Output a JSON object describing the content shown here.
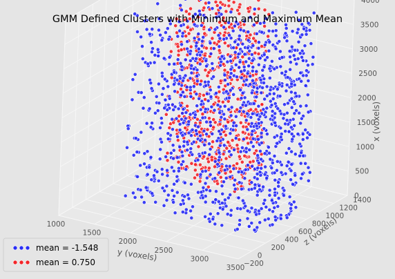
{
  "chart_data": {
    "type": "scatter",
    "projection": "3d",
    "title": "GMM Defined Clusters with Minimum and Maximum Mean",
    "axes": {
      "y": {
        "label": "y (voxels)",
        "range": [
          1000,
          3500
        ],
        "ticks": [
          "1000",
          "1500",
          "2000",
          "2500",
          "3000",
          "3500"
        ]
      },
      "z": {
        "label": "z (voxels)",
        "range": [
          -200,
          1400
        ],
        "ticks": [
          "−200",
          "0",
          "200",
          "400",
          "600",
          "800",
          "1000",
          "1200",
          "1400"
        ]
      },
      "x": {
        "label": "x (voxels)",
        "range": [
          0,
          4000
        ],
        "ticks": [
          "0",
          "500",
          "1000",
          "1500",
          "2000",
          "2500",
          "3000",
          "3500",
          "4000"
        ]
      }
    },
    "series": [
      {
        "name": "mean = -1.548",
        "color": "#2a2ef5",
        "extent": {
          "y": [
            1450,
            3300
          ],
          "z": [
            300,
            1100
          ],
          "x": [
            0,
            3950
          ]
        },
        "approx_points": 2600
      },
      {
        "name": "mean =  0.750",
        "color": "#f2262a",
        "extent": {
          "y": [
            1400,
            2600
          ],
          "z": [
            900,
            1150
          ],
          "x": [
            0,
            3950
          ]
        },
        "approx_points": 1300
      }
    ],
    "grid": true,
    "legend": {
      "position": "bottom-left"
    },
    "background": "#e5e5e5",
    "pane_color": "#ebebeb"
  }
}
